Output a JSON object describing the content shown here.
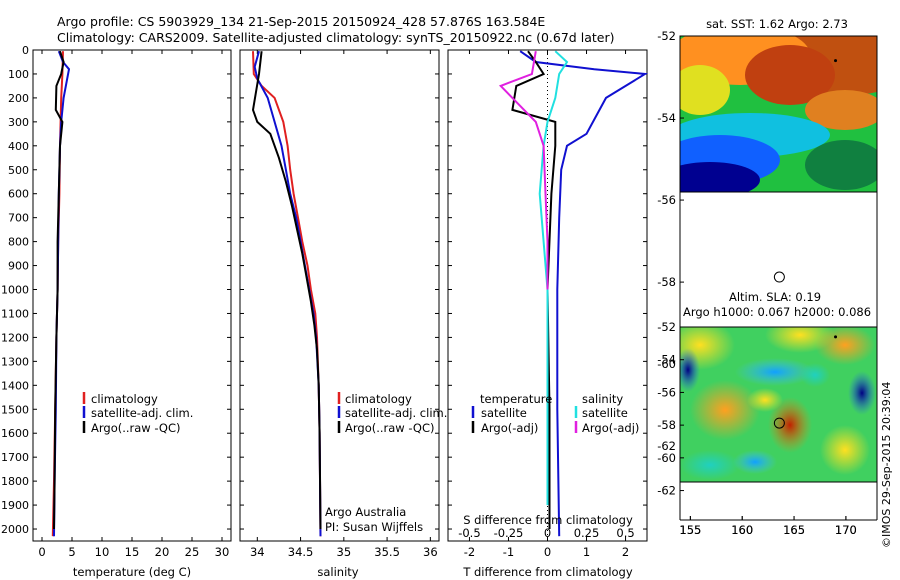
{
  "header": {
    "line1": "Argo profile: CS 5903929_134 21-Sep-2015 20150924_428 57.876S 163.584E",
    "line2": "Climatology: CARS2009. Satellite-adjusted climatology: synTS_20150922.nc (0.67d later)"
  },
  "colors": {
    "climatology": "#e02020",
    "satellite": "#1010d0",
    "argo": "#000000",
    "sal_satellite": "#20e0e0",
    "argo_adj": "#e020e0"
  },
  "chart_data": [
    {
      "type": "line",
      "id": "temperature",
      "xlabel": "temperature (deg C)",
      "ylabel": "",
      "xlim": [
        -1.5,
        31.5
      ],
      "ylim": [
        2050,
        0
      ],
      "xticks": [
        0,
        5,
        10,
        15,
        20,
        25,
        30
      ],
      "yticks": [
        0,
        100,
        200,
        300,
        400,
        500,
        600,
        700,
        800,
        900,
        1000,
        1100,
        1200,
        1300,
        1400,
        1500,
        1600,
        1700,
        1800,
        1900,
        2000
      ],
      "legend": [
        "climatology",
        "satellite-adj. clim.",
        "Argo(..raw -QC)"
      ],
      "series": [
        {
          "name": "climatology",
          "color_key": "climatology",
          "points": [
            [
              3.5,
              5
            ],
            [
              3.4,
              100
            ],
            [
              3.2,
              200
            ],
            [
              3.1,
              300
            ],
            [
              3.0,
              400
            ],
            [
              2.9,
              600
            ],
            [
              2.7,
              800
            ],
            [
              2.6,
              1000
            ],
            [
              2.4,
              1200
            ],
            [
              2.2,
              1500
            ],
            [
              2.0,
              1800
            ],
            [
              1.8,
              2030
            ]
          ]
        },
        {
          "name": "satellite-adj. clim.",
          "color_key": "satellite",
          "points": [
            [
              2.8,
              5
            ],
            [
              3.5,
              50
            ],
            [
              4.5,
              80
            ],
            [
              4.2,
              120
            ],
            [
              3.6,
              200
            ],
            [
              3.2,
              300
            ],
            [
              3.0,
              400
            ],
            [
              2.8,
              600
            ],
            [
              2.7,
              800
            ],
            [
              2.6,
              1000
            ],
            [
              2.4,
              1200
            ],
            [
              2.3,
              1500
            ],
            [
              2.1,
              1800
            ],
            [
              2.0,
              2030
            ]
          ]
        },
        {
          "name": "Argo(..raw -QC)",
          "color_key": "argo",
          "points": [
            [
              3.0,
              5
            ],
            [
              3.6,
              50
            ],
            [
              3.2,
              100
            ],
            [
              2.4,
              150
            ],
            [
              2.3,
              250
            ],
            [
              3.4,
              300
            ],
            [
              3.0,
              400
            ],
            [
              2.8,
              600
            ],
            [
              2.6,
              800
            ],
            [
              2.6,
              1000
            ],
            [
              2.4,
              1200
            ],
            [
              2.2,
              1500
            ],
            [
              2.1,
              1800
            ],
            [
              2.0,
              2000
            ]
          ]
        }
      ]
    },
    {
      "type": "line",
      "id": "salinity",
      "xlabel": "salinity",
      "ylabel": "",
      "xlim": [
        33.8,
        36.1
      ],
      "ylim": [
        2050,
        0
      ],
      "xticks": [
        34,
        34.5,
        35,
        35.5,
        36
      ],
      "legend": [
        "climatology",
        "satellite-adj. clim.",
        "Argo(..raw -QC)"
      ],
      "annotation": [
        "Argo Australia",
        "PI: Susan Wijffels"
      ],
      "series": [
        {
          "name": "climatology",
          "color_key": "climatology",
          "points": [
            [
              33.95,
              5
            ],
            [
              33.96,
              100
            ],
            [
              34.05,
              150
            ],
            [
              34.2,
              200
            ],
            [
              34.3,
              300
            ],
            [
              34.35,
              400
            ],
            [
              34.38,
              500
            ],
            [
              34.42,
              600
            ],
            [
              34.47,
              700
            ],
            [
              34.52,
              800
            ],
            [
              34.58,
              900
            ],
            [
              34.62,
              1000
            ],
            [
              34.67,
              1100
            ],
            [
              34.69,
              1200
            ],
            [
              34.71,
              1400
            ],
            [
              34.72,
              1600
            ],
            [
              34.73,
              2030
            ]
          ]
        },
        {
          "name": "satellite-adj. clim.",
          "color_key": "satellite",
          "points": [
            [
              34.02,
              5
            ],
            [
              33.97,
              70
            ],
            [
              34.0,
              120
            ],
            [
              34.12,
              200
            ],
            [
              34.2,
              300
            ],
            [
              34.28,
              400
            ],
            [
              34.33,
              500
            ],
            [
              34.38,
              600
            ],
            [
              34.45,
              700
            ],
            [
              34.5,
              800
            ],
            [
              34.55,
              900
            ],
            [
              34.6,
              1000
            ],
            [
              34.65,
              1100
            ],
            [
              34.68,
              1200
            ],
            [
              34.71,
              1400
            ],
            [
              34.72,
              1600
            ],
            [
              34.73,
              2030
            ]
          ]
        },
        {
          "name": "Argo(..raw -QC)",
          "color_key": "argo",
          "points": [
            [
              34.05,
              5
            ],
            [
              34.02,
              100
            ],
            [
              33.95,
              250
            ],
            [
              34.0,
              300
            ],
            [
              34.15,
              350
            ],
            [
              34.25,
              450
            ],
            [
              34.33,
              550
            ],
            [
              34.4,
              650
            ],
            [
              34.46,
              750
            ],
            [
              34.52,
              850
            ],
            [
              34.57,
              950
            ],
            [
              34.62,
              1050
            ],
            [
              34.66,
              1150
            ],
            [
              34.69,
              1250
            ],
            [
              34.71,
              1400
            ],
            [
              34.72,
              1600
            ],
            [
              34.73,
              2000
            ]
          ]
        }
      ]
    },
    {
      "type": "line",
      "id": "difference",
      "xlabel": "T difference from climatology",
      "xlabel_top": "S difference from climatology",
      "xlim": [
        -2.55,
        2.55
      ],
      "ylim": [
        2050,
        0
      ],
      "xticks": [
        -2,
        -1,
        0,
        1,
        2
      ],
      "xticks_top": [
        -0.5,
        -0.25,
        0,
        0.25,
        0.5
      ],
      "legend_temperature": [
        "temperature",
        "satellite",
        "Argo(-adj)"
      ],
      "legend_salinity": [
        "salinity",
        "satellite",
        "Argo(-adj)"
      ],
      "series": [
        {
          "name": "temperature satellite",
          "color_key": "satellite",
          "points": [
            [
              -0.7,
              5
            ],
            [
              -0.3,
              50
            ],
            [
              1.2,
              80
            ],
            [
              2.5,
              100
            ],
            [
              1.5,
              200
            ],
            [
              1.0,
              350
            ],
            [
              0.5,
              400
            ],
            [
              0.35,
              500
            ],
            [
              0.3,
              700
            ],
            [
              0.25,
              1000
            ],
            [
              0.25,
              1500
            ],
            [
              0.3,
              2030
            ]
          ]
        },
        {
          "name": "temperature Argo(-adj)",
          "color_key": "argo",
          "points": [
            [
              -0.5,
              5
            ],
            [
              -0.3,
              50
            ],
            [
              -0.1,
              100
            ],
            [
              -0.8,
              150
            ],
            [
              -0.9,
              250
            ],
            [
              0.2,
              300
            ],
            [
              0.2,
              400
            ],
            [
              0.1,
              600
            ],
            [
              0.0,
              1000
            ],
            [
              0.05,
              1500
            ],
            [
              0.05,
              2000
            ]
          ]
        },
        {
          "name": "salinity satellite",
          "color_key": "sal_satellite",
          "points": [
            [
              0.2,
              5
            ],
            [
              0.5,
              50
            ],
            [
              0.3,
              100
            ],
            [
              0.2,
              200
            ],
            [
              0.0,
              300
            ],
            [
              -0.1,
              400
            ],
            [
              -0.2,
              600
            ],
            [
              -0.1,
              800
            ],
            [
              0.0,
              1000
            ],
            [
              0.0,
              1500
            ],
            [
              0.0,
              1900
            ]
          ]
        },
        {
          "name": "salinity Argo(-adj)",
          "color_key": "argo_adj",
          "points": [
            [
              -0.3,
              5
            ],
            [
              -0.4,
              100
            ],
            [
              -1.2,
              150
            ],
            [
              -0.6,
              250
            ],
            [
              -0.3,
              300
            ],
            [
              -0.1,
              400
            ],
            [
              -0.05,
              600
            ],
            [
              0.0,
              800
            ],
            [
              0.0,
              1000
            ]
          ]
        }
      ]
    },
    {
      "type": "heatmap",
      "id": "sst_map",
      "title": "sat. SST: 1.62 Argo: 2.73",
      "xlim": [
        154,
        173
      ],
      "ylim": [
        -63.8,
        -52
      ],
      "xticks": [
        155,
        160,
        165,
        170
      ],
      "yticks": [
        -52,
        -54,
        -56,
        -58,
        -60,
        -62
      ],
      "argo_position": [
        163.584,
        -57.876
      ],
      "marker": [
        169,
        -52.6
      ]
    },
    {
      "type": "heatmap",
      "id": "sla_map",
      "title": [
        "Altim. SLA: 0.19",
        "Argo h1000: 0.067 h2000: 0.086"
      ],
      "xlim": [
        154,
        173
      ],
      "ylim": [
        -63.8,
        -52
      ],
      "xticks": [
        155,
        160,
        165,
        170
      ],
      "yticks": [
        -52,
        -54,
        -56,
        -58,
        -60,
        -62
      ],
      "argo_position": [
        163.584,
        -57.876
      ],
      "marker": [
        169,
        -52.6
      ]
    }
  ],
  "watermark": "©IMOS 29-Sep-2015 20:39:04"
}
